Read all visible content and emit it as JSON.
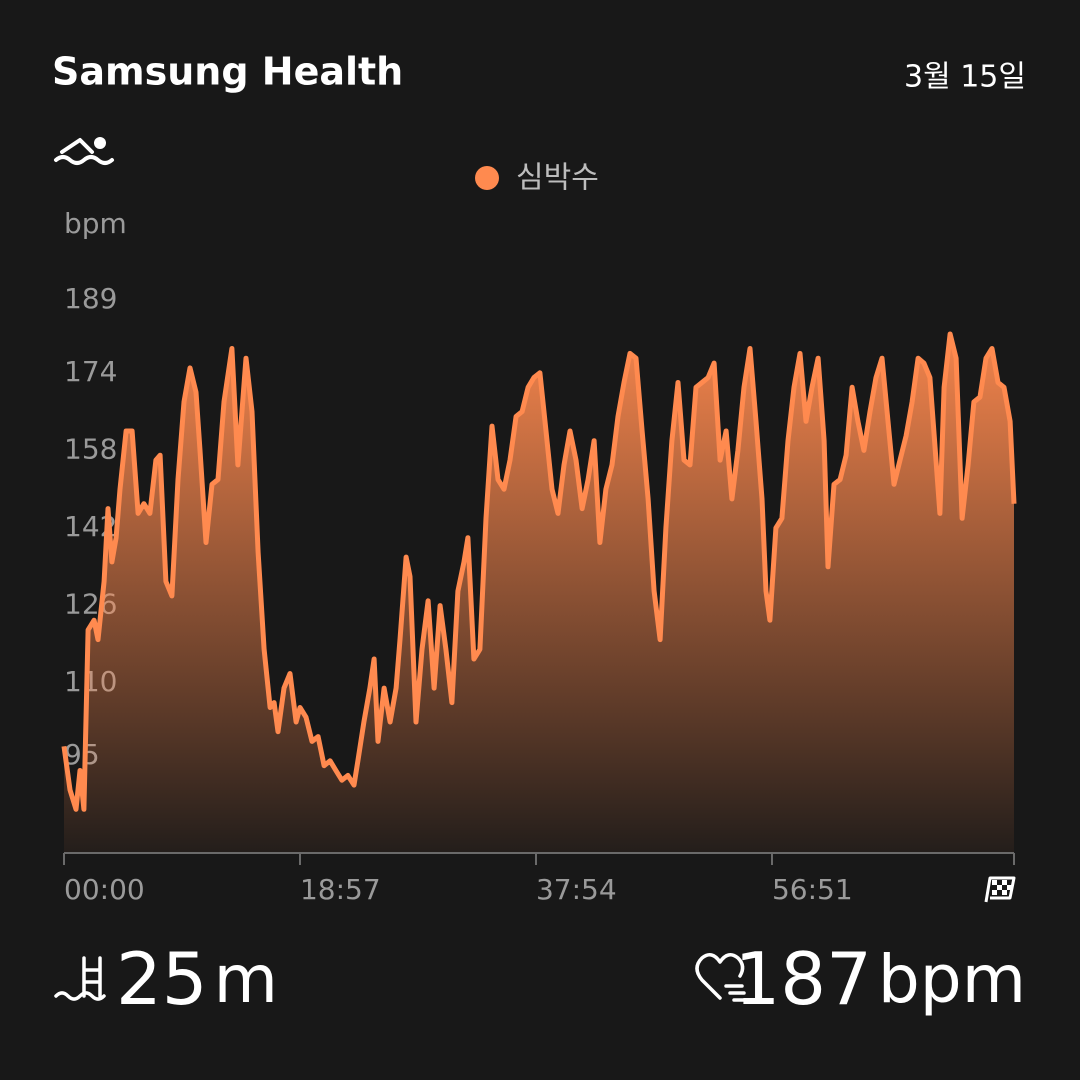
{
  "header": {
    "app": "Samsung Health",
    "date": "3월 15일"
  },
  "chart_data": {
    "type": "area",
    "y_label": "bpm",
    "x": [
      0,
      29,
      58,
      77,
      96,
      116,
      145,
      164,
      193,
      212,
      231,
      251,
      270,
      299,
      328,
      357,
      385,
      414,
      443,
      463,
      491,
      520,
      549,
      578,
      607,
      636,
      655,
      684,
      713,
      742,
      771,
      809,
      838,
      877,
      906,
      935,
      964,
      993,
      1012,
      1031,
      1060,
      1089,
      1118,
      1137,
      1166,
      1195,
      1224,
      1253,
      1282,
      1310,
      1339,
      1368,
      1397,
      1416,
      1445,
      1474,
      1494,
      1513,
      1542,
      1571,
      1600,
      1619,
      1648,
      1667,
      1696,
      1725,
      1754,
      1783,
      1812,
      1840,
      1869,
      1898,
      1927,
      1946,
      1975,
      2004,
      2033,
      2062,
      2091,
      2120,
      2149,
      2178,
      2207,
      2236,
      2264,
      2293,
      2322,
      2351,
      2380,
      2409,
      2438,
      2467,
      2496,
      2525,
      2554,
      2582,
      2611,
      2640,
      2669,
      2698,
      2727,
      2756,
      2785,
      2814,
      2843,
      2872,
      2900,
      2929,
      2958,
      2987,
      3016,
      3045,
      3074,
      3103,
      3132,
      3161,
      3190,
      3218,
      3247,
      3276,
      3305,
      3334,
      3363,
      3382,
      3401,
      3430,
      3459,
      3488,
      3517,
      3546,
      3575,
      3604,
      3633,
      3662,
      3681,
      3710,
      3739,
      3768,
      3797,
      3825,
      3854,
      3883,
      3912,
      3941,
      3970,
      3999,
      4028,
      4057,
      4086,
      4115,
      4143,
      4172,
      4201,
      4220,
      4240,
      4269,
      4298,
      4327,
      4356,
      4384,
      4413,
      4442,
      4471,
      4500,
      4529,
      4558,
      4577
    ],
    "series": [
      {
        "name": "심박수",
        "color": "#ff8a4f",
        "values": [
          97,
          88,
          84,
          92,
          84,
          121,
          123,
          119,
          131,
          146,
          135,
          140,
          150,
          162,
          162,
          145,
          147,
          145,
          156,
          157,
          131,
          128,
          152,
          168,
          175,
          170,
          158,
          139,
          151,
          152,
          168,
          179,
          155,
          177,
          166,
          137,
          117,
          105,
          106,
          100,
          109,
          112,
          102,
          105,
          103,
          98,
          99,
          93,
          94,
          92,
          90,
          91,
          89,
          94,
          102,
          109,
          115,
          98,
          109,
          102,
          109,
          119,
          136,
          132,
          102,
          117,
          127,
          109,
          126,
          117,
          106,
          129,
          135,
          140,
          115,
          117,
          144,
          163,
          152,
          150,
          156,
          165,
          166,
          171,
          173,
          174,
          162,
          150,
          145,
          155,
          162,
          156,
          146,
          152,
          160,
          139,
          150,
          155,
          165,
          172,
          178,
          177,
          162,
          148,
          129,
          119,
          142,
          160,
          172,
          156,
          155,
          171,
          172,
          173,
          176,
          156,
          162,
          148,
          158,
          171,
          179,
          164,
          148,
          129,
          123,
          142,
          144,
          160,
          171,
          178,
          164,
          171,
          177,
          160,
          134,
          151,
          152,
          157,
          171,
          164,
          158,
          166,
          173,
          177,
          164,
          151,
          156,
          161,
          168,
          177,
          176,
          173,
          156,
          145,
          171,
          182,
          177,
          144,
          155,
          168,
          169,
          177,
          179,
          172,
          171,
          164,
          147
        ]
      }
    ],
    "xlim": [
      0,
      4577
    ],
    "xticks": [
      {
        "value": 0,
        "label": "00:00"
      },
      {
        "value": 1137,
        "label": "18:57"
      },
      {
        "value": 2274,
        "label": "37:54"
      },
      {
        "value": 3411,
        "label": "56:51"
      }
    ],
    "ylim": [
      75,
      189
    ],
    "yticks": [
      189,
      174,
      158,
      142,
      126,
      110,
      95
    ],
    "grid": false
  },
  "stats": {
    "distance": {
      "value": "25",
      "unit": "m"
    },
    "max_heart_rate": {
      "value": "187",
      "unit": "bpm"
    }
  }
}
